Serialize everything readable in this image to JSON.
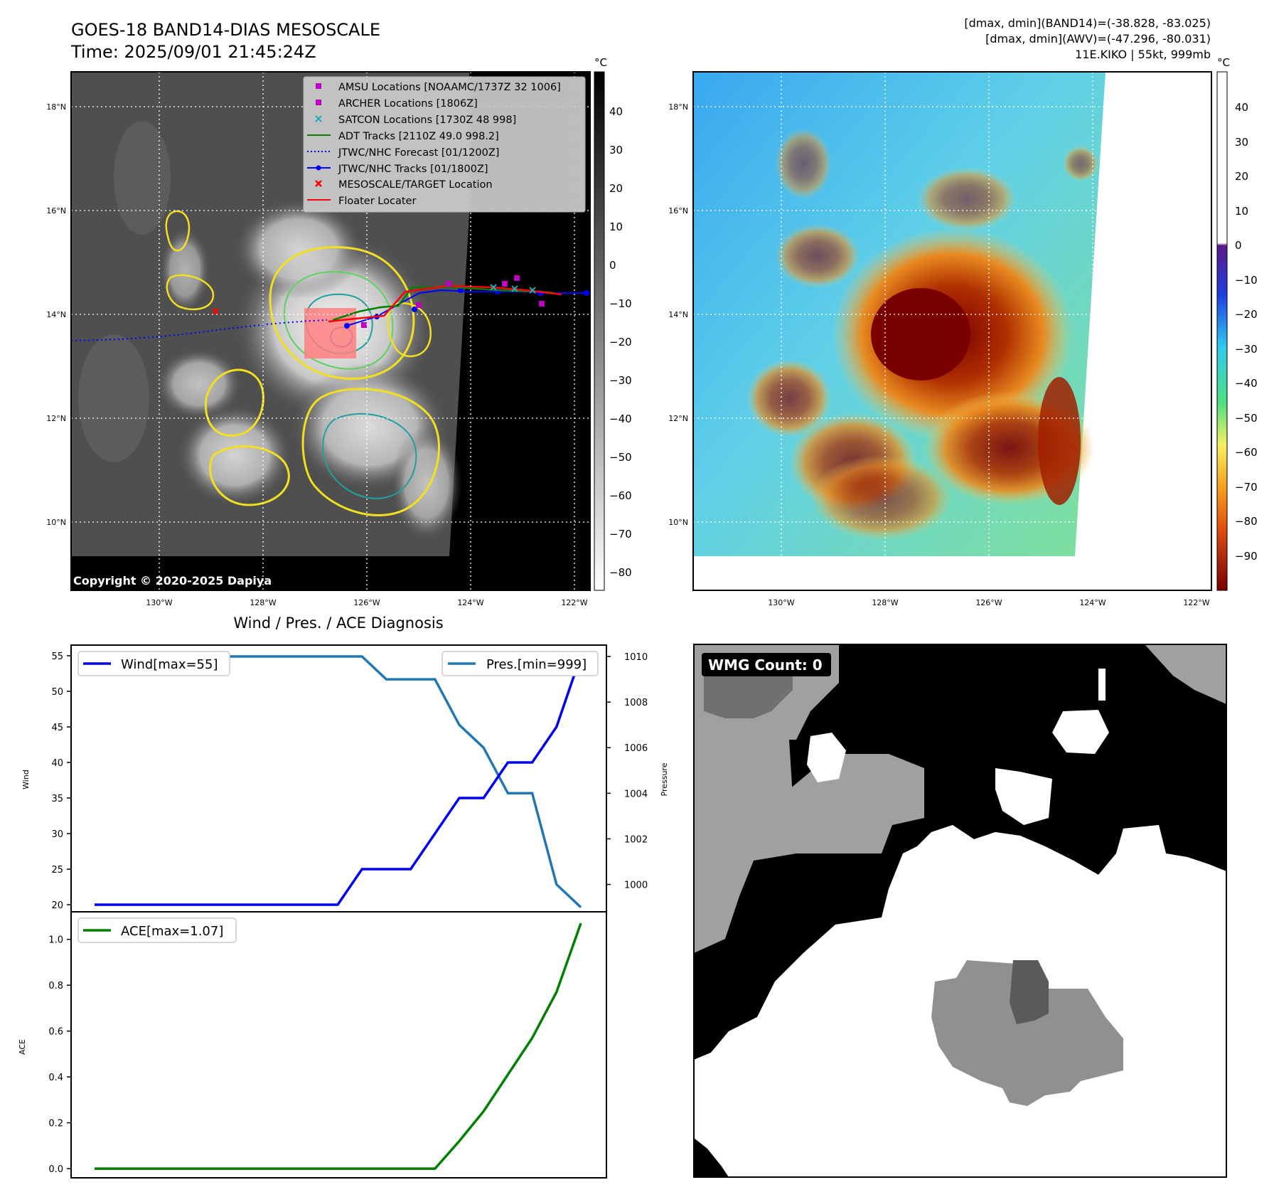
{
  "header": {
    "title": "GOES-18 BAND14-DIAS MESOSCALE",
    "time": "Time: 2025/09/01 21:45:24Z",
    "stats_band14": "[dmax, dmin](BAND14)=(-38.828, -83.025)",
    "stats_awv": "[dmax, dmin](AWV)=(-47.296, -80.031)",
    "storm": "11E.KIKO | 55kt, 999mb"
  },
  "map_axes": {
    "lon_labels": [
      "130°W",
      "128°W",
      "126°W",
      "124°W",
      "122°W"
    ],
    "lat_labels": [
      "18°N",
      "16°N",
      "14°N",
      "12°N",
      "10°N"
    ]
  },
  "ir_panel": {
    "copyright": "Copyright © 2020-2025 Dapiya",
    "colorbar_unit": "°C",
    "colorbar_ticks": [
      "40",
      "30",
      "20",
      "10",
      "0",
      "−10",
      "−20",
      "−30",
      "−40",
      "−50",
      "−60",
      "−70",
      "−80"
    ],
    "legend": [
      {
        "label": "AMSU Locations [NOAAMC/1737Z 32 1006]",
        "color": "#c000c0"
      },
      {
        "label": "ARCHER Locations [1806Z]",
        "color": "#c000c0"
      },
      {
        "label": "SATCON Locations [1730Z 48 998]",
        "color": "#20b0b0"
      },
      {
        "label": "ADT Tracks [2110Z 49.0 998.2]",
        "color": "#008000"
      },
      {
        "label": "JTWC/NHC Forecast [01/1200Z]",
        "color": "#0000ff"
      },
      {
        "label": "JTWC/NHC Tracks [01/1800Z]",
        "color": "#0000ff"
      },
      {
        "label": "MESOSCALE/TARGET Location",
        "color": "#ff0000"
      },
      {
        "label": "Floater Locater",
        "color": "#ff0000"
      }
    ]
  },
  "color_panel": {
    "colorbar_unit": "°C",
    "colorbar_ticks": [
      "40",
      "30",
      "20",
      "10",
      "0",
      "−10",
      "−20",
      "−30",
      "−40",
      "−50",
      "−60",
      "−70",
      "−80",
      "−90"
    ]
  },
  "wmg_panel": {
    "label": "WMG Count: 0"
  },
  "chart_data": [
    {
      "type": "line",
      "title": "Wind / Pres. / ACE Diagnosis",
      "ylabel": "Wind",
      "ylabel_right": "Pressure",
      "ylim": [
        19,
        56.5
      ],
      "ylim_right": [
        998.8,
        1010.5
      ],
      "yticks": [
        20,
        25,
        30,
        35,
        40,
        45,
        50,
        55
      ],
      "yticks_right": [
        1000,
        1002,
        1004,
        1006,
        1008,
        1010
      ],
      "series": [
        {
          "name": "Wind[max=55]",
          "axis": "left",
          "color": "#0000ee",
          "values": [
            20,
            20,
            20,
            20,
            20,
            20,
            20,
            20,
            20,
            20,
            20,
            25,
            25,
            25,
            30,
            35,
            35,
            40,
            40,
            45,
            55
          ]
        },
        {
          "name": "Pres.[min=999]",
          "axis": "right",
          "color": "#1f77b4",
          "values": [
            1010,
            1010,
            1010,
            1010,
            1010,
            1010,
            1010,
            1010,
            1010,
            1010,
            1010,
            1010,
            1009,
            1009,
            1009,
            1007,
            1006,
            1004,
            1004,
            1000,
            999
          ]
        }
      ]
    },
    {
      "type": "line",
      "ylabel": "ACE",
      "ylim": [
        -0.04,
        1.12
      ],
      "yticks": [
        "0.0",
        "0.2",
        "0.4",
        "0.6",
        "0.8",
        "1.0"
      ],
      "series": [
        {
          "name": "ACE[max=1.07]",
          "color": "#008000",
          "values": [
            0,
            0,
            0,
            0,
            0,
            0,
            0,
            0,
            0,
            0,
            0,
            0,
            0,
            0,
            0,
            0.12,
            0.25,
            0.41,
            0.57,
            0.77,
            1.07
          ]
        }
      ]
    }
  ]
}
